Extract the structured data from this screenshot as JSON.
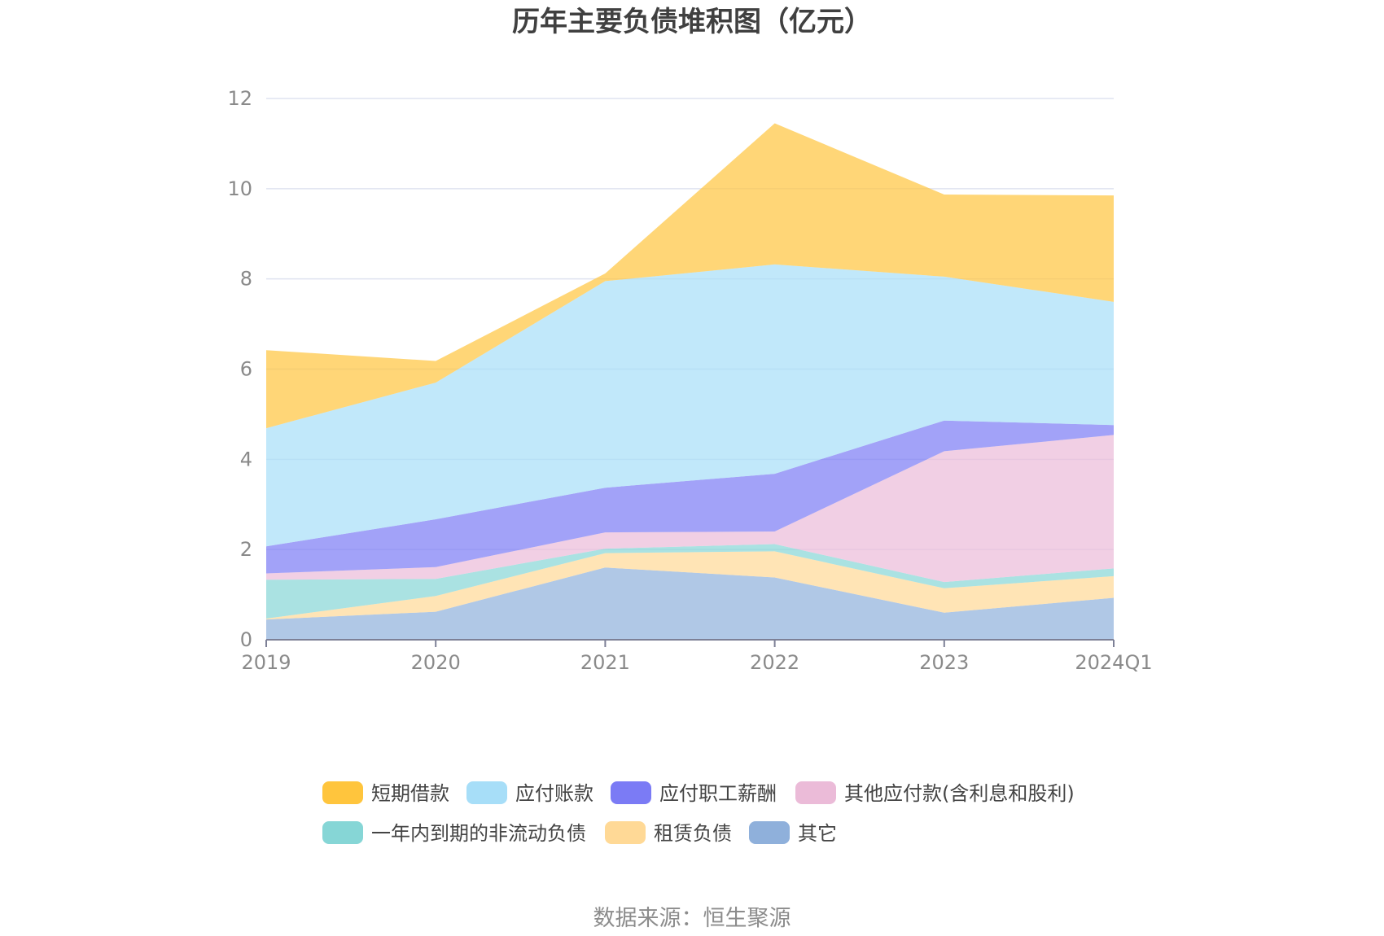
{
  "chart_data": {
    "type": "area",
    "stacked": true,
    "title": "历年主要负债堆积图（亿元）",
    "source": "数据来源：恒生聚源",
    "categories": [
      "2019",
      "2020",
      "2021",
      "2022",
      "2023",
      "2024Q1"
    ],
    "ylim": [
      0,
      12
    ],
    "yticks": [
      0,
      2,
      4,
      6,
      8,
      10,
      12
    ],
    "grid": true,
    "legend_position": "bottom",
    "series": [
      {
        "name": "其它",
        "color": "#8fb0db",
        "values": [
          0.45,
          0.62,
          1.6,
          1.38,
          0.6,
          0.93
        ]
      },
      {
        "name": "租赁负债",
        "color": "#ffd996",
        "values": [
          0.02,
          0.35,
          0.32,
          0.58,
          0.54,
          0.48
        ]
      },
      {
        "name": "一年内到期的非流动负债",
        "color": "#86d6d6",
        "values": [
          0.86,
          0.38,
          0.1,
          0.16,
          0.14,
          0.17
        ]
      },
      {
        "name": "其他应付款(含利息和股利)",
        "color": "#ebbbd8",
        "values": [
          0.14,
          0.26,
          0.36,
          0.28,
          2.9,
          2.96
        ]
      },
      {
        "name": "应付职工薪酬",
        "color": "#7b7bf5",
        "values": [
          0.6,
          1.06,
          0.99,
          1.28,
          0.68,
          0.22
        ]
      },
      {
        "name": "应付账款",
        "color": "#a7def8",
        "values": [
          2.62,
          3.03,
          4.58,
          4.64,
          3.19,
          2.73
        ]
      },
      {
        "name": "短期借款",
        "color": "#ffc53d",
        "values": [
          1.73,
          0.48,
          0.17,
          3.13,
          1.82,
          2.36
        ]
      }
    ],
    "legend_order": [
      "短期借款",
      "应付账款",
      "应付职工薪酬",
      "其他应付款(含利息和股利)",
      "一年内到期的非流动负债",
      "租赁负债",
      "其它"
    ]
  }
}
